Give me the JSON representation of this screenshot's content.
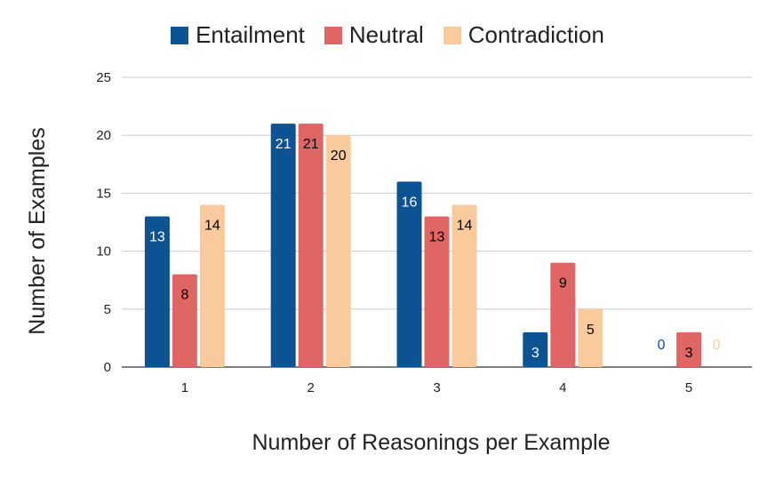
{
  "chart_data": {
    "type": "bar",
    "title": "",
    "xlabel": "Number of Reasonings per Example",
    "ylabel": "Number of Examples",
    "categories": [
      "1",
      "2",
      "3",
      "4",
      "5"
    ],
    "ylim": [
      0,
      25
    ],
    "yticks": [
      "0",
      "5",
      "10",
      "15",
      "20",
      "25"
    ],
    "grid": true,
    "legend_position": "top-center",
    "series": [
      {
        "name": "Entailment",
        "color": "#0d5394",
        "label_color": "#ffffff",
        "zero_label_color": "#0d5394",
        "values": [
          13,
          21,
          16,
          3,
          0
        ],
        "labels": [
          "13",
          "21",
          "16",
          "3",
          "0"
        ]
      },
      {
        "name": "Neutral",
        "color": "#e06666",
        "label_color": "#000000",
        "zero_label_color": "#e06666",
        "values": [
          8,
          21,
          13,
          9,
          3
        ],
        "labels": [
          "8",
          "21",
          "13",
          "9",
          "3"
        ]
      },
      {
        "name": "Contradiction",
        "color": "#f9cb9c",
        "label_color": "#000000",
        "zero_label_color": "#f9cb9c",
        "values": [
          14,
          20,
          14,
          5,
          0
        ],
        "labels": [
          "14",
          "20",
          "14",
          "5",
          "0"
        ]
      }
    ]
  }
}
